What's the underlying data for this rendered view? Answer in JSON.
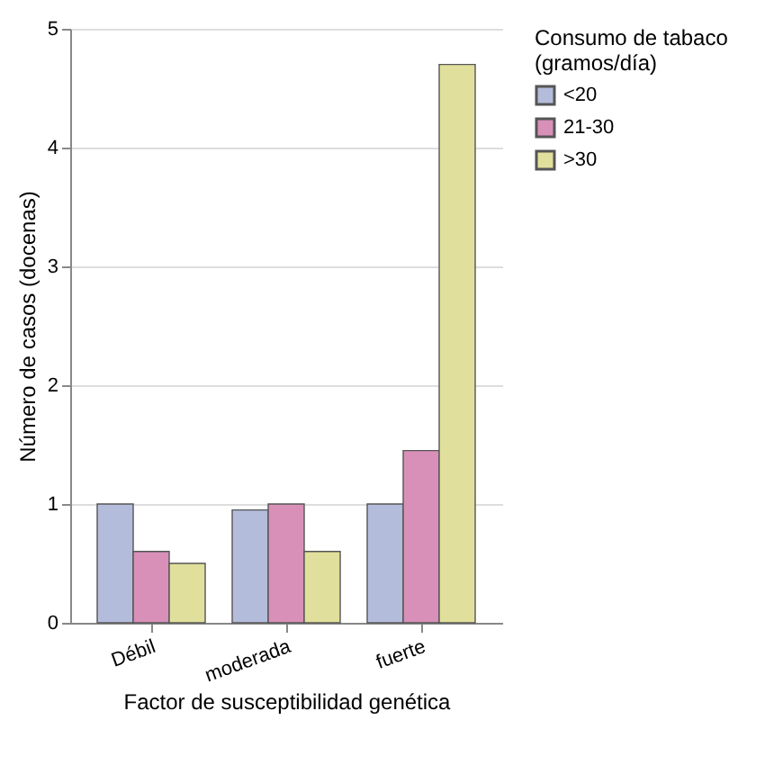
{
  "chart_data": {
    "type": "bar",
    "xlabel": "Factor de susceptibilidad genética",
    "ylabel": "Número de casos (docenas)",
    "legend_title": "Consumo de tabaco (gramos/día)",
    "categories": [
      "Débil",
      "moderada",
      "fuerte"
    ],
    "series": [
      {
        "name": "<20",
        "color": "#b4bcdc",
        "values": [
          1.0,
          0.95,
          1.0
        ]
      },
      {
        "name": "21-30",
        "color": "#d890b8",
        "values": [
          0.6,
          1.0,
          1.45
        ]
      },
      {
        "name": ">30",
        "color": "#e0e09c",
        "values": [
          0.5,
          0.6,
          4.7
        ]
      }
    ],
    "ylim": [
      0,
      5
    ],
    "yticks": [
      0,
      1,
      2,
      3,
      4,
      5
    ],
    "grid": "y",
    "legend": "right"
  }
}
